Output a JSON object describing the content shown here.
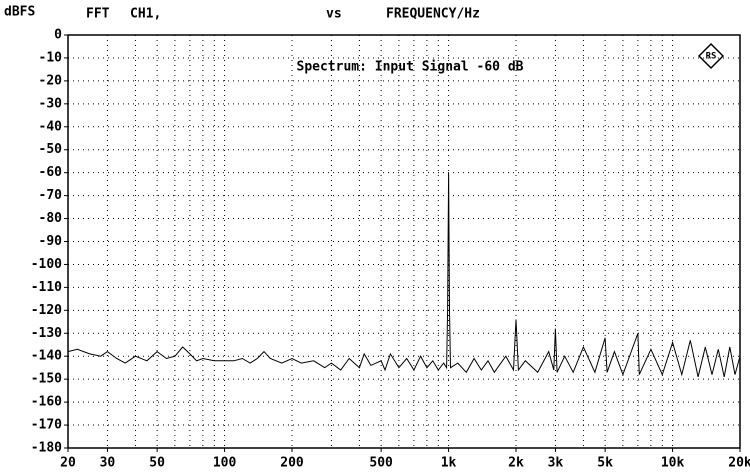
{
  "chart_data": {
    "type": "line",
    "ylabel": "dBFS",
    "header": [
      "FFT",
      "CH1,",
      "vs"
    ],
    "xlabel": "FREQUENCY/Hz",
    "title": "Spectrum: Input Signal -60 dB",
    "xscale": "log",
    "xlim": [
      20,
      20000
    ],
    "ylim": [
      -180,
      0
    ],
    "xticks": [
      20,
      30,
      50,
      100,
      200,
      500,
      {
        "value": 1000,
        "label": "1k"
      },
      {
        "value": 2000,
        "label": "2k"
      },
      {
        "value": 3000,
        "label": "3k"
      },
      {
        "value": 5000,
        "label": "5k"
      },
      {
        "value": 10000,
        "label": "10k"
      },
      {
        "value": 20000,
        "label": "20k"
      }
    ],
    "xminorticks": [
      40,
      60,
      70,
      80,
      90,
      300,
      400,
      600,
      700,
      800,
      900,
      4000,
      6000,
      7000,
      8000,
      9000
    ],
    "yticks": [
      0,
      -10,
      -20,
      -30,
      -40,
      -50,
      -60,
      -70,
      -80,
      -90,
      -100,
      -110,
      -120,
      -130,
      -140,
      -150,
      -160,
      -170,
      -180
    ],
    "grid": true,
    "series": [
      {
        "color": "#000000",
        "x": [
          20,
          22,
          25,
          28,
          30,
          33,
          36,
          40,
          45,
          50,
          55,
          60,
          65,
          70,
          75,
          80,
          90,
          100,
          110,
          120,
          130,
          140,
          150,
          160,
          180,
          200,
          220,
          250,
          280,
          300,
          330,
          360,
          400,
          420,
          450,
          500,
          520,
          550,
          600,
          650,
          700,
          750,
          800,
          850,
          900,
          950,
          980,
          990,
          1000,
          1010,
          1020,
          1100,
          1200,
          1300,
          1400,
          1500,
          1600,
          1800,
          1950,
          2000,
          2050,
          2200,
          2500,
          2800,
          2950,
          3000,
          3050,
          3300,
          3600,
          4000,
          4500,
          5000,
          5100,
          5500,
          6000,
          7000,
          7100,
          8000,
          9000,
          10000,
          11000,
          12000,
          13000,
          14000,
          15000,
          16000,
          17000,
          18000,
          19000,
          20000
        ],
        "values": [
          -138,
          -137,
          -139,
          -140,
          -138,
          -141,
          -143,
          -140,
          -142,
          -138,
          -141,
          -140,
          -136,
          -139,
          -142,
          -141,
          -142,
          -142,
          -142,
          -141,
          -143,
          -141,
          -138,
          -141,
          -143,
          -141,
          -143,
          -142,
          -145,
          -143,
          -146,
          -141,
          -145,
          -139,
          -144,
          -142,
          -146,
          -139,
          -145,
          -141,
          -146,
          -140,
          -145,
          -142,
          -146,
          -143,
          -145,
          -120,
          -60,
          -120,
          -145,
          -143,
          -147,
          -141,
          -146,
          -142,
          -147,
          -140,
          -146,
          -124,
          -146,
          -142,
          -147,
          -138,
          -146,
          -128,
          -147,
          -140,
          -147,
          -136,
          -147,
          -132,
          -147,
          -138,
          -148,
          -130,
          -148,
          -137,
          -148,
          -134,
          -148,
          -133,
          -149,
          -136,
          -148,
          -137,
          -149,
          -136,
          -148,
          -140
        ]
      }
    ]
  }
}
